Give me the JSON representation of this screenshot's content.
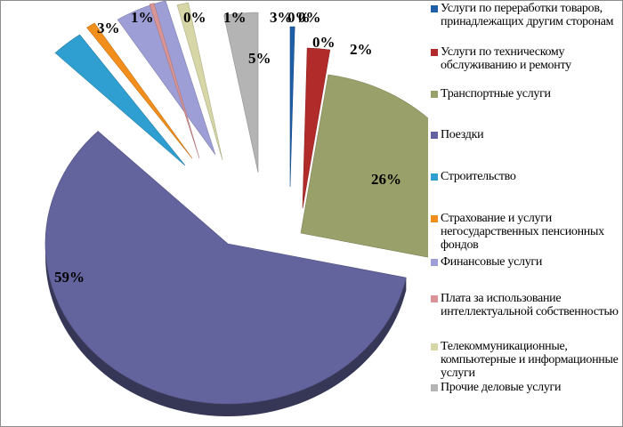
{
  "chart_data": {
    "type": "pie",
    "categories": [
      "Услуги по переработки товаров, принадлежащих другим сторонам",
      "Услуги по техническому обслуживанию и ремонту",
      "Транспортные услуги",
      "Поездки",
      "Строительство",
      "Страхование и услуги негосударственных пенсионных фондов",
      "Финансовые услуги",
      "Плата за использование интеллектуальной собственностью",
      "Телекоммуникационные, компьютерные и информационные услуги",
      "Прочие деловые услуги"
    ],
    "values": [
      0.4,
      2,
      26,
      59,
      2.8,
      0.8,
      4.6,
      0.4,
      1,
      3
    ],
    "labels": [
      "0%",
      "2%",
      "26%",
      "59%",
      "3%",
      "1%",
      "5%",
      "0%",
      "1%",
      "3%"
    ],
    "extra_labels": [
      "0%",
      "0%"
    ],
    "colors": [
      "#1f5fa8",
      "#b22b2b",
      "#9aa06a",
      "#63639e",
      "#2f9fd1",
      "#f28e1c",
      "#9e9ed6",
      "#d99595",
      "#d6d6a6",
      "#b4b4b4"
    ],
    "exploded": true,
    "style": "3d",
    "legend_position": "right"
  }
}
